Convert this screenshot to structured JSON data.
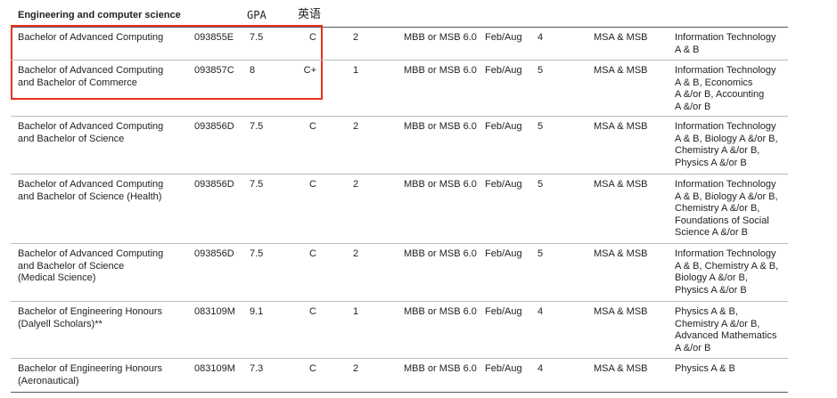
{
  "header": {
    "title": "Engineering and computer science",
    "annotations": [
      "GPA",
      "英语"
    ]
  },
  "table": {
    "rows": [
      [
        [
          "Bachelor of Advanced Computing"
        ],
        "093855E",
        "7.5",
        "C",
        "2",
        "MBB or MSB 6.0",
        "Feb/Aug",
        "4",
        "MSA & MSB",
        [
          "Information Technology",
          "A & B"
        ]
      ],
      [
        [
          "Bachelor of Advanced Computing",
          "and Bachelor of Commerce"
        ],
        "093857C",
        "8",
        "C+",
        "1",
        "MBB or MSB 6.0",
        "Feb/Aug",
        "5",
        "MSA & MSB",
        [
          "Information Technology",
          "A & B,  Economics",
          "A &/or B, Accounting",
          "A &/or B"
        ]
      ],
      [
        [
          "Bachelor of Advanced Computing",
          "and Bachelor of Science"
        ],
        "093856D",
        "7.5",
        "C",
        "2",
        "MBB or MSB 6.0",
        "Feb/Aug",
        "5",
        "MSA & MSB",
        [
          "Information Technology",
          "A & B, Biology A &/or B,",
          "Chemistry A &/or B,",
          "Physics A &/or B"
        ]
      ],
      [
        [
          "Bachelor of Advanced Computing",
          "and Bachelor of Science (Health)"
        ],
        "093856D",
        "7.5",
        "C",
        "2",
        "MBB or MSB 6.0",
        "Feb/Aug",
        "5",
        "MSA & MSB",
        [
          "Information Technology",
          "A & B, Biology A &/or B,",
          "Chemistry A &/or B,",
          "Foundations of Social",
          "Science A &/or B"
        ]
      ],
      [
        [
          "Bachelor of Advanced Computing",
          "and Bachelor of Science",
          "(Medical Science)"
        ],
        "093856D",
        "7.5",
        "C",
        "2",
        "MBB or MSB 6.0",
        "Feb/Aug",
        "5",
        "MSA & MSB",
        [
          "Information Technology",
          "A & B,  Chemistry A & B,",
          "Biology A &/or B,",
          "Physics A &/or B"
        ]
      ],
      [
        [
          "Bachelor of Engineering Honours",
          "(Dalyell Scholars)**"
        ],
        "083109M",
        "9.1",
        "C",
        "1",
        "MBB or MSB 6.0",
        "Feb/Aug",
        "4",
        "MSA & MSB",
        [
          "Physics A & B,",
          "Chemistry A &/or B,",
          "Advanced Mathematics",
          "A &/or B"
        ]
      ],
      [
        [
          "Bachelor of Engineering Honours",
          "(Aeronautical)"
        ],
        "083109M",
        "7.3",
        "C",
        "2",
        "MBB or MSB 6.0",
        "Feb/Aug",
        "4",
        "MSA & MSB",
        [
          "Physics A & B"
        ]
      ]
    ]
  }
}
